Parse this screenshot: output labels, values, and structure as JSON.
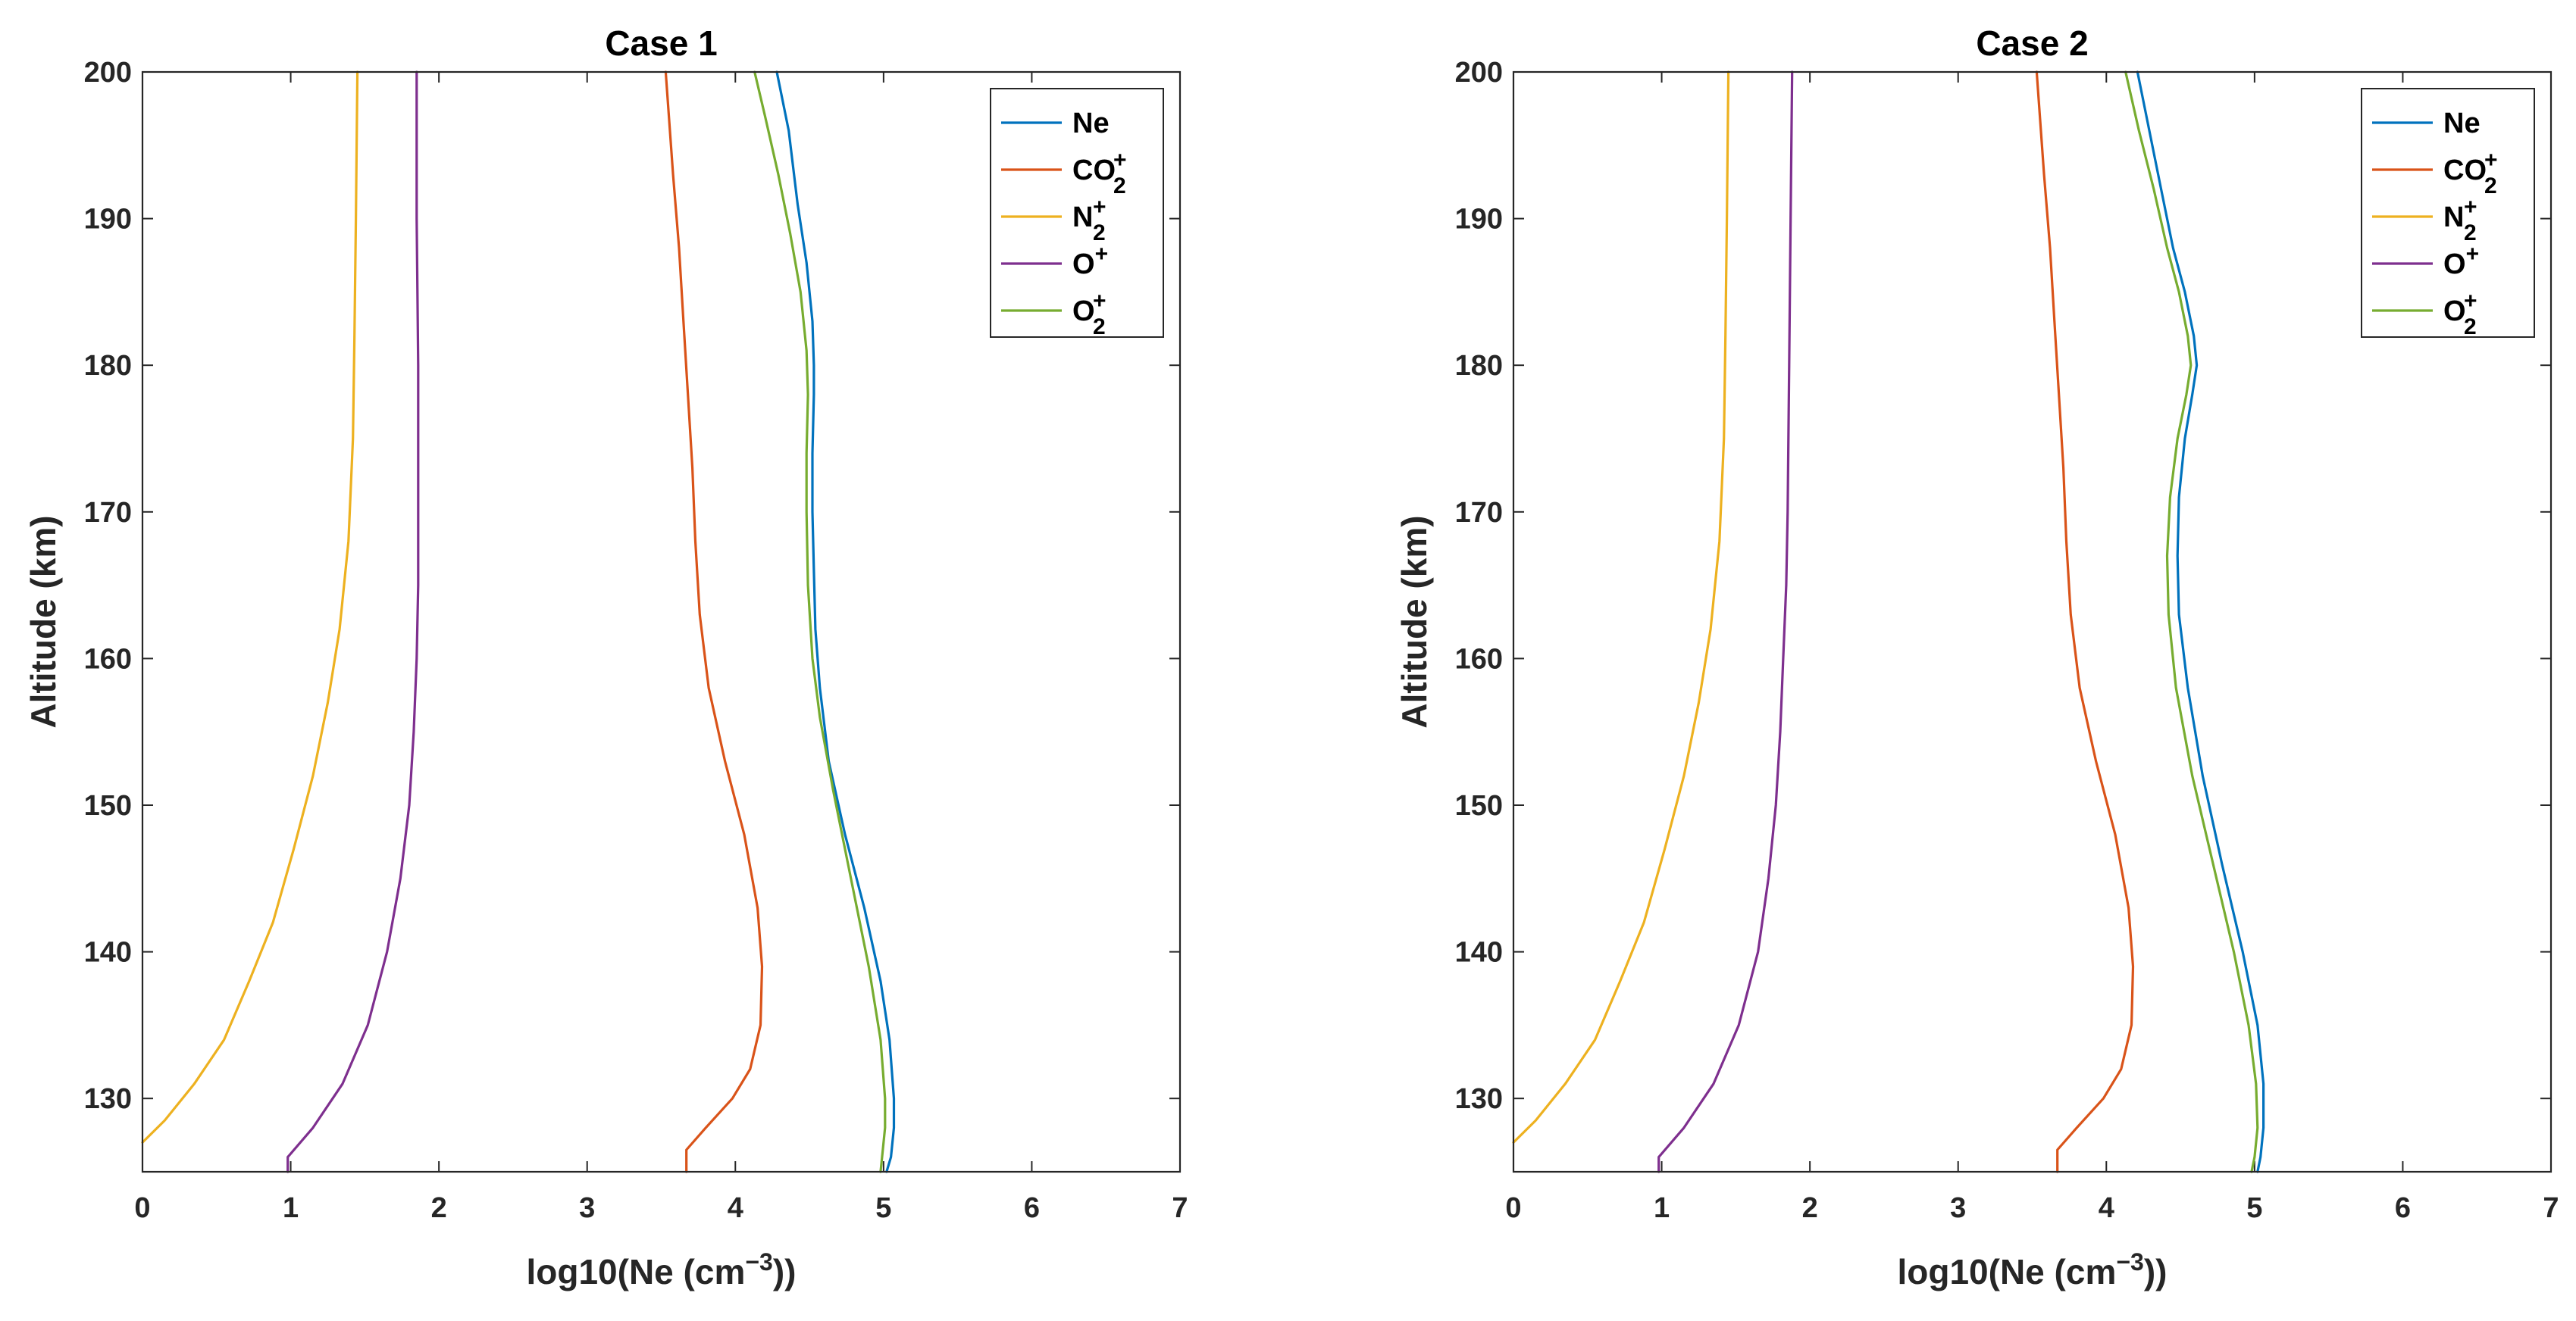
{
  "chart_data": [
    {
      "type": "line",
      "title": "Case 1",
      "xlabel_base": "log10(Ne (cm",
      "xlabel_sup": "−3",
      "xlabel_end": "))",
      "ylabel": "Altitude (km)",
      "xlim": [
        0,
        7
      ],
      "ylim": [
        125,
        200
      ],
      "xticks": [
        "0",
        "1",
        "2",
        "3",
        "4",
        "5",
        "6",
        "7"
      ],
      "yticks": [
        "130",
        "140",
        "150",
        "160",
        "170",
        "180",
        "190",
        "200"
      ],
      "legend_position": "top-right",
      "series": [
        {
          "name": "Ne",
          "base": "Ne",
          "sup": "",
          "sub": "",
          "color": "#0072BD",
          "x": [
            5.02,
            5.05,
            5.07,
            5.07,
            5.04,
            4.98,
            4.87,
            4.74,
            4.63,
            4.57,
            4.54,
            4.53,
            4.52,
            4.52,
            4.53,
            4.53,
            4.52,
            4.48,
            4.42,
            4.36,
            4.28
          ],
          "y": [
            125,
            126,
            128,
            130,
            134,
            138,
            143,
            148,
            153,
            158,
            162,
            166,
            170,
            174,
            178,
            180,
            183,
            187,
            191,
            196,
            200
          ]
        },
        {
          "name": "CO2+",
          "base": "CO",
          "sup": "+",
          "sub": "2",
          "color": "#D95319",
          "x": [
            3.67,
            3.67,
            3.8,
            3.98,
            4.1,
            4.17,
            4.18,
            4.15,
            4.06,
            3.93,
            3.82,
            3.76,
            3.73,
            3.71,
            3.68,
            3.65,
            3.62,
            3.58,
            3.53
          ],
          "y": [
            125,
            126.5,
            128,
            130,
            132,
            135,
            139,
            143,
            148,
            153,
            158,
            163,
            168,
            173,
            178,
            183,
            188,
            193,
            200
          ]
        },
        {
          "name": "N2+",
          "base": "N",
          "sup": "+",
          "sub": "2",
          "color": "#EDB120",
          "x": [
            0.0,
            0.15,
            0.35,
            0.55,
            0.72,
            0.88,
            1.02,
            1.15,
            1.25,
            1.33,
            1.39,
            1.42,
            1.43,
            1.44,
            1.45
          ],
          "y": [
            127,
            128.5,
            131,
            134,
            138,
            142,
            147,
            152,
            157,
            162,
            168,
            175,
            182,
            190,
            200
          ]
        },
        {
          "name": "O+",
          "base": "O",
          "sup": "+",
          "sub": "",
          "color": "#7E2F8E",
          "x": [
            0.98,
            0.98,
            1.15,
            1.35,
            1.52,
            1.65,
            1.74,
            1.8,
            1.83,
            1.85,
            1.86,
            1.86,
            1.86,
            1.85,
            1.85
          ],
          "y": [
            125,
            126,
            128,
            131,
            135,
            140,
            145,
            150,
            155,
            160,
            165,
            170,
            180,
            190,
            200
          ]
        },
        {
          "name": "O2+",
          "base": "O",
          "sup": "+",
          "sub": "2",
          "color": "#77AC30",
          "x": [
            4.98,
            4.99,
            5.01,
            5.01,
            4.98,
            4.9,
            4.78,
            4.66,
            4.57,
            4.52,
            4.49,
            4.48,
            4.48,
            4.49,
            4.48,
            4.44,
            4.37,
            4.29,
            4.2,
            4.13
          ],
          "y": [
            125,
            126,
            128,
            130,
            134,
            139,
            145,
            151,
            156,
            160,
            165,
            170,
            174,
            178,
            181,
            185,
            189,
            193,
            197,
            200
          ]
        }
      ]
    },
    {
      "type": "line",
      "title": "Case 2",
      "xlabel_base": "log10(Ne (cm",
      "xlabel_sup": "−3",
      "xlabel_end": "))",
      "ylabel": "Altitude (km)",
      "xlim": [
        0,
        7
      ],
      "ylim": [
        125,
        200
      ],
      "xticks": [
        "0",
        "1",
        "2",
        "3",
        "4",
        "5",
        "6",
        "7"
      ],
      "yticks": [
        "130",
        "140",
        "150",
        "160",
        "170",
        "180",
        "190",
        "200"
      ],
      "legend_position": "top-right",
      "series": [
        {
          "name": "Ne",
          "base": "Ne",
          "sup": "",
          "sub": "",
          "color": "#0072BD",
          "x": [
            5.02,
            5.04,
            5.06,
            5.06,
            5.02,
            4.92,
            4.78,
            4.65,
            4.55,
            4.49,
            4.48,
            4.49,
            4.53,
            4.58,
            4.61,
            4.59,
            4.53,
            4.45,
            4.37,
            4.29,
            4.21
          ],
          "y": [
            125,
            126,
            128,
            131,
            135,
            140,
            146,
            152,
            158,
            163,
            167,
            171,
            175,
            178,
            180,
            182,
            185,
            188,
            192,
            196,
            200
          ]
        },
        {
          "name": "CO2+",
          "base": "CO",
          "sup": "+",
          "sub": "2",
          "color": "#D95319",
          "x": [
            3.67,
            3.67,
            3.8,
            3.98,
            4.1,
            4.17,
            4.18,
            4.15,
            4.06,
            3.93,
            3.82,
            3.76,
            3.73,
            3.71,
            3.68,
            3.65,
            3.62,
            3.58,
            3.53
          ],
          "y": [
            125,
            126.5,
            128,
            130,
            132,
            135,
            139,
            143,
            148,
            153,
            158,
            163,
            168,
            173,
            178,
            183,
            188,
            193,
            200
          ]
        },
        {
          "name": "N2+",
          "base": "N",
          "sup": "+",
          "sub": "2",
          "color": "#EDB120",
          "x": [
            0.0,
            0.15,
            0.35,
            0.55,
            0.72,
            0.88,
            1.02,
            1.15,
            1.25,
            1.33,
            1.39,
            1.42,
            1.43,
            1.44,
            1.45
          ],
          "y": [
            127,
            128.5,
            131,
            134,
            138,
            142,
            147,
            152,
            157,
            162,
            168,
            175,
            182,
            190,
            200
          ]
        },
        {
          "name": "O+",
          "base": "O",
          "sup": "+",
          "sub": "",
          "color": "#7E2F8E",
          "x": [
            0.98,
            0.98,
            1.15,
            1.35,
            1.52,
            1.65,
            1.72,
            1.77,
            1.8,
            1.82,
            1.84,
            1.85,
            1.86,
            1.87,
            1.88
          ],
          "y": [
            125,
            126,
            128,
            131,
            135,
            140,
            145,
            150,
            155,
            160,
            165,
            170,
            180,
            190,
            200
          ]
        },
        {
          "name": "O2+",
          "base": "O",
          "sup": "+",
          "sub": "2",
          "color": "#77AC30",
          "x": [
            4.98,
            5.0,
            5.02,
            5.01,
            4.96,
            4.86,
            4.72,
            4.58,
            4.47,
            4.42,
            4.41,
            4.43,
            4.48,
            4.54,
            4.57,
            4.55,
            4.49,
            4.41,
            4.32,
            4.22,
            4.13
          ],
          "y": [
            125,
            126,
            128,
            131,
            135,
            140,
            146,
            152,
            158,
            163,
            167,
            171,
            175,
            178,
            180,
            182,
            185,
            188,
            192,
            196,
            200
          ]
        }
      ]
    }
  ]
}
